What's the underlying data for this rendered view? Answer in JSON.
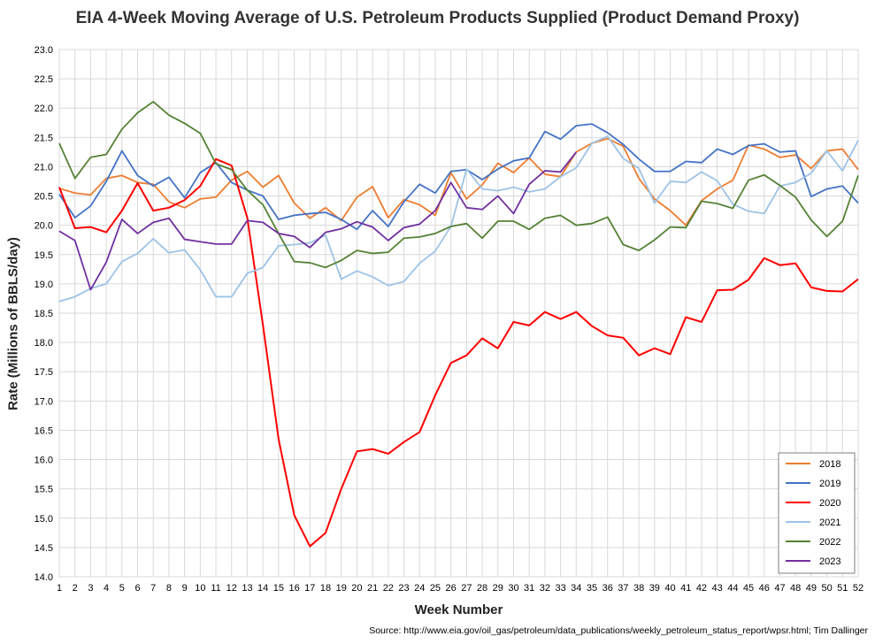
{
  "chart_data": {
    "type": "line",
    "title": "EIA 4-Week Moving Average of U.S. Petroleum Products Supplied (Product Demand Proxy)",
    "xlabel": "Week Number",
    "ylabel": "Rate (Millions of BBLS/day)",
    "source": "Source: http://www.eia.gov/oil_gas/petroleum/data_publications/weekly_petroleum_status_report/wpsr.html; Tim Dallinger",
    "ylim": [
      14.0,
      23.0
    ],
    "yticks": [
      "14.0",
      "14.5",
      "15.0",
      "15.5",
      "16.0",
      "16.5",
      "17.0",
      "17.5",
      "18.0",
      "18.5",
      "19.0",
      "19.5",
      "20.0",
      "20.5",
      "21.0",
      "21.5",
      "22.0",
      "22.5",
      "23.0"
    ],
    "x": [
      1,
      2,
      3,
      4,
      5,
      6,
      7,
      8,
      9,
      10,
      11,
      12,
      13,
      14,
      15,
      16,
      17,
      18,
      19,
      20,
      21,
      22,
      23,
      24,
      25,
      26,
      27,
      28,
      29,
      30,
      31,
      32,
      33,
      34,
      35,
      36,
      37,
      38,
      39,
      40,
      41,
      42,
      43,
      44,
      45,
      46,
      47,
      48,
      49,
      50,
      51,
      52
    ],
    "grid": true,
    "legend_position": "bottom-right",
    "series": [
      {
        "name": "2018",
        "color": "#ED7D31",
        "values": [
          20.63,
          20.55,
          20.52,
          20.8,
          20.85,
          20.73,
          20.7,
          20.4,
          20.3,
          20.45,
          20.48,
          20.77,
          20.92,
          20.65,
          20.85,
          20.38,
          20.12,
          20.3,
          20.08,
          20.48,
          20.66,
          20.13,
          20.44,
          20.35,
          20.17,
          20.9,
          20.45,
          20.69,
          21.06,
          20.9,
          21.15,
          20.87,
          20.83,
          21.25,
          21.4,
          21.48,
          21.35,
          20.8,
          20.45,
          20.25,
          20.0,
          20.42,
          20.62,
          20.77,
          21.37,
          21.3,
          21.16,
          21.2,
          20.97,
          21.27,
          21.3,
          20.95
        ]
      },
      {
        "name": "2019",
        "color": "#4472C4",
        "values": [
          20.53,
          20.13,
          20.33,
          20.75,
          21.27,
          20.85,
          20.67,
          20.82,
          20.47,
          20.9,
          21.07,
          20.73,
          20.6,
          20.5,
          20.1,
          20.17,
          20.2,
          20.22,
          20.1,
          19.93,
          20.25,
          19.98,
          20.4,
          20.7,
          20.55,
          20.92,
          20.95,
          20.78,
          20.96,
          21.1,
          21.15,
          21.6,
          21.47,
          21.7,
          21.73,
          21.58,
          21.38,
          21.13,
          20.92,
          20.92,
          21.09,
          21.07,
          21.3,
          21.21,
          21.36,
          21.39,
          21.25,
          21.27,
          20.49,
          20.62,
          20.67,
          20.38
        ]
      },
      {
        "name": "2020",
        "color": "#FF0000",
        "values": [
          20.65,
          19.95,
          19.97,
          19.88,
          20.25,
          20.72,
          20.25,
          20.3,
          20.43,
          20.67,
          21.13,
          21.02,
          20.13,
          18.3,
          16.35,
          15.05,
          14.52,
          14.75,
          15.5,
          16.14,
          16.18,
          16.1,
          16.3,
          16.47,
          17.1,
          17.65,
          17.78,
          18.07,
          17.9,
          18.35,
          18.29,
          18.52,
          18.4,
          18.52,
          18.28,
          18.12,
          18.08,
          17.78,
          17.9,
          17.8,
          18.43,
          18.35,
          18.89,
          18.9,
          19.07,
          19.44,
          19.32,
          19.35,
          18.94,
          18.88,
          18.87,
          19.08
        ]
      },
      {
        "name": "2021",
        "color": "#9DC3E6",
        "values": [
          18.7,
          18.78,
          18.92,
          19.0,
          19.38,
          19.52,
          19.77,
          19.53,
          19.58,
          19.24,
          18.78,
          18.78,
          19.18,
          19.28,
          19.65,
          19.67,
          19.7,
          19.83,
          19.08,
          19.22,
          19.12,
          18.97,
          19.04,
          19.35,
          19.56,
          19.98,
          20.96,
          20.62,
          20.59,
          20.65,
          20.57,
          20.62,
          20.83,
          20.98,
          21.4,
          21.52,
          21.14,
          20.97,
          20.38,
          20.75,
          20.73,
          20.91,
          20.76,
          20.36,
          20.24,
          20.2,
          20.67,
          20.73,
          20.89,
          21.27,
          20.93,
          21.45
        ]
      },
      {
        "name": "2022",
        "color": "#548235",
        "values": [
          21.4,
          20.8,
          21.16,
          21.21,
          21.64,
          21.92,
          22.11,
          21.88,
          21.74,
          21.57,
          21.05,
          20.95,
          20.6,
          20.35,
          19.86,
          19.38,
          19.36,
          19.28,
          19.4,
          19.57,
          19.52,
          19.54,
          19.78,
          19.8,
          19.86,
          19.98,
          20.03,
          19.78,
          20.07,
          20.07,
          19.93,
          20.12,
          20.17,
          20.0,
          20.03,
          20.14,
          19.67,
          19.57,
          19.75,
          19.97,
          19.96,
          20.41,
          20.37,
          20.29,
          20.77,
          20.86,
          20.68,
          20.48,
          20.09,
          19.81,
          20.07,
          20.85
        ]
      },
      {
        "name": "2023",
        "color": "#7030A0",
        "values": [
          19.9,
          19.74,
          18.9,
          19.37,
          20.1,
          19.86,
          20.05,
          20.12,
          19.76,
          19.72,
          19.68,
          19.68,
          20.08,
          20.05,
          19.86,
          19.81,
          19.62,
          19.88,
          19.94,
          20.06,
          19.97,
          19.74,
          19.96,
          20.02,
          20.25,
          20.73,
          20.3,
          20.27,
          20.5,
          20.2,
          20.7,
          20.93,
          20.91,
          21.25,
          null,
          null,
          null,
          null,
          null,
          null,
          null,
          null,
          null,
          null,
          null,
          null,
          null,
          null,
          null,
          null,
          null,
          null
        ]
      }
    ]
  }
}
